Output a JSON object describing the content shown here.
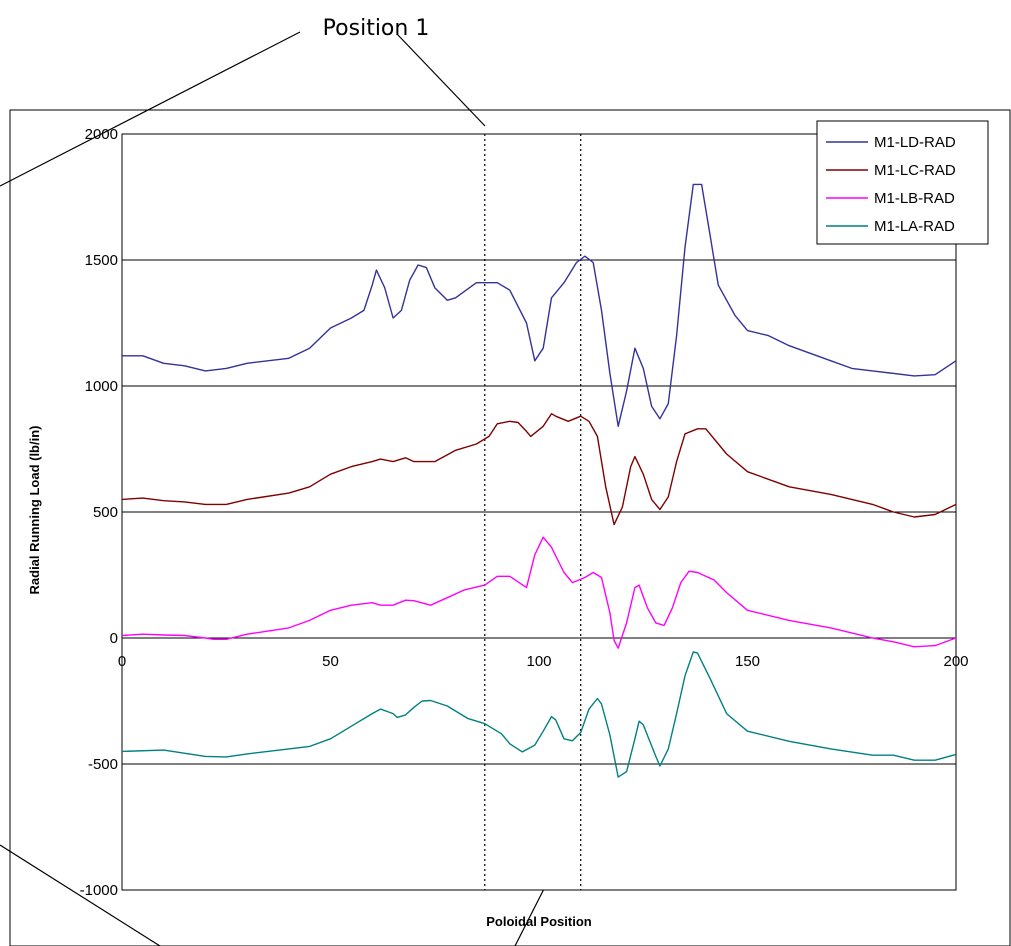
{
  "callout": {
    "label": "Position 1"
  },
  "chart_data": {
    "type": "line",
    "xlabel": "Poloidal Position",
    "ylabel": "Radial Running Load (lb/in)",
    "xlim": [
      0,
      200
    ],
    "ylim": [
      -1000,
      2000
    ],
    "x_ticks": [
      0,
      50,
      100,
      150,
      200
    ],
    "y_ticks": [
      -1000,
      -500,
      0,
      500,
      1000,
      1500,
      2000
    ],
    "x_tick_labels": [
      "0",
      "50",
      "100",
      "150",
      "200"
    ],
    "y_tick_labels": [
      "-1000",
      "-500",
      "0",
      "500",
      "1000",
      "1500",
      "2000"
    ],
    "grid": "horizontal major gridlines",
    "legend_position": "top-right",
    "reference_lines": [
      87,
      110
    ],
    "series": [
      {
        "name": "M1-LA-RAD",
        "color": "#008080",
        "points": [
          [
            0,
            -450
          ],
          [
            10,
            -445
          ],
          [
            20,
            -470
          ],
          [
            25,
            -472
          ],
          [
            30,
            -460
          ],
          [
            40,
            -440
          ],
          [
            45,
            -430
          ],
          [
            50,
            -400
          ],
          [
            55,
            -350
          ],
          [
            60,
            -300
          ],
          [
            62,
            -282
          ],
          [
            65,
            -300
          ],
          [
            66,
            -315
          ],
          [
            68,
            -305
          ],
          [
            70,
            -275
          ],
          [
            72,
            -250
          ],
          [
            74,
            -248
          ],
          [
            78,
            -270
          ],
          [
            83,
            -320
          ],
          [
            87,
            -340
          ],
          [
            91,
            -380
          ],
          [
            93,
            -420
          ],
          [
            96,
            -452
          ],
          [
            99,
            -425
          ],
          [
            101,
            -370
          ],
          [
            103,
            -312
          ],
          [
            104,
            -325
          ],
          [
            106,
            -400
          ],
          [
            108,
            -408
          ],
          [
            110,
            -375
          ],
          [
            112,
            -282
          ],
          [
            114,
            -240
          ],
          [
            115,
            -262
          ],
          [
            117,
            -385
          ],
          [
            119,
            -552
          ],
          [
            121,
            -530
          ],
          [
            123,
            -400
          ],
          [
            124,
            -330
          ],
          [
            125,
            -345
          ],
          [
            128,
            -470
          ],
          [
            129,
            -508
          ],
          [
            131,
            -440
          ],
          [
            133,
            -300
          ],
          [
            135,
            -150
          ],
          [
            137,
            -55
          ],
          [
            138,
            -60
          ],
          [
            141,
            -160
          ],
          [
            145,
            -300
          ],
          [
            150,
            -370
          ],
          [
            160,
            -410
          ],
          [
            170,
            -440
          ],
          [
            180,
            -465
          ],
          [
            185,
            -465
          ],
          [
            190,
            -485
          ],
          [
            195,
            -485
          ],
          [
            200,
            -462
          ]
        ]
      },
      {
        "name": "M1-LB-RAD",
        "color": "#ff00ff",
        "points": [
          [
            0,
            10
          ],
          [
            5,
            15
          ],
          [
            10,
            12
          ],
          [
            15,
            10
          ],
          [
            20,
            0
          ],
          [
            22,
            -5
          ],
          [
            25,
            -5
          ],
          [
            30,
            15
          ],
          [
            40,
            40
          ],
          [
            45,
            70
          ],
          [
            50,
            110
          ],
          [
            55,
            130
          ],
          [
            60,
            140
          ],
          [
            62,
            130
          ],
          [
            65,
            130
          ],
          [
            68,
            150
          ],
          [
            70,
            148
          ],
          [
            74,
            130
          ],
          [
            78,
            160
          ],
          [
            82,
            190
          ],
          [
            87,
            210
          ],
          [
            90,
            245
          ],
          [
            93,
            245
          ],
          [
            97,
            200
          ],
          [
            99,
            330
          ],
          [
            101,
            400
          ],
          [
            103,
            360
          ],
          [
            106,
            260
          ],
          [
            108,
            220
          ],
          [
            111,
            240
          ],
          [
            113,
            260
          ],
          [
            115,
            240
          ],
          [
            117,
            100
          ],
          [
            118,
            -10
          ],
          [
            119,
            -40
          ],
          [
            121,
            60
          ],
          [
            123,
            200
          ],
          [
            124,
            210
          ],
          [
            126,
            120
          ],
          [
            128,
            60
          ],
          [
            130,
            50
          ],
          [
            132,
            120
          ],
          [
            134,
            220
          ],
          [
            136,
            265
          ],
          [
            138,
            260
          ],
          [
            142,
            230
          ],
          [
            145,
            180
          ],
          [
            150,
            110
          ],
          [
            160,
            70
          ],
          [
            170,
            40
          ],
          [
            180,
            0
          ],
          [
            185,
            -15
          ],
          [
            190,
            -35
          ],
          [
            195,
            -30
          ],
          [
            200,
            0
          ]
        ]
      },
      {
        "name": "M1-LC-RAD",
        "color": "#800000",
        "points": [
          [
            0,
            550
          ],
          [
            5,
            555
          ],
          [
            10,
            545
          ],
          [
            15,
            540
          ],
          [
            20,
            530
          ],
          [
            25,
            530
          ],
          [
            30,
            550
          ],
          [
            40,
            575
          ],
          [
            45,
            600
          ],
          [
            50,
            650
          ],
          [
            55,
            680
          ],
          [
            60,
            700
          ],
          [
            62,
            710
          ],
          [
            65,
            700
          ],
          [
            68,
            715
          ],
          [
            70,
            700
          ],
          [
            75,
            700
          ],
          [
            80,
            745
          ],
          [
            85,
            770
          ],
          [
            88,
            800
          ],
          [
            90,
            850
          ],
          [
            93,
            860
          ],
          [
            95,
            855
          ],
          [
            97,
            820
          ],
          [
            98,
            800
          ],
          [
            101,
            840
          ],
          [
            103,
            890
          ],
          [
            104,
            880
          ],
          [
            107,
            860
          ],
          [
            110,
            880
          ],
          [
            112,
            860
          ],
          [
            114,
            800
          ],
          [
            116,
            600
          ],
          [
            118,
            450
          ],
          [
            120,
            520
          ],
          [
            122,
            680
          ],
          [
            123,
            720
          ],
          [
            125,
            650
          ],
          [
            127,
            550
          ],
          [
            129,
            510
          ],
          [
            131,
            560
          ],
          [
            133,
            700
          ],
          [
            135,
            810
          ],
          [
            138,
            830
          ],
          [
            140,
            830
          ],
          [
            145,
            730
          ],
          [
            150,
            660
          ],
          [
            160,
            600
          ],
          [
            170,
            570
          ],
          [
            180,
            530
          ],
          [
            185,
            500
          ],
          [
            190,
            480
          ],
          [
            195,
            490
          ],
          [
            200,
            530
          ]
        ]
      },
      {
        "name": "M1-LD-RAD",
        "color": "#333399",
        "points": [
          [
            0,
            1120
          ],
          [
            5,
            1120
          ],
          [
            10,
            1090
          ],
          [
            15,
            1080
          ],
          [
            20,
            1060
          ],
          [
            25,
            1070
          ],
          [
            30,
            1090
          ],
          [
            40,
            1110
          ],
          [
            45,
            1150
          ],
          [
            50,
            1230
          ],
          [
            55,
            1270
          ],
          [
            58,
            1300
          ],
          [
            60,
            1400
          ],
          [
            61,
            1460
          ],
          [
            63,
            1390
          ],
          [
            65,
            1270
          ],
          [
            67,
            1300
          ],
          [
            69,
            1420
          ],
          [
            71,
            1480
          ],
          [
            73,
            1470
          ],
          [
            75,
            1390
          ],
          [
            78,
            1340
          ],
          [
            80,
            1350
          ],
          [
            85,
            1410
          ],
          [
            90,
            1410
          ],
          [
            93,
            1380
          ],
          [
            97,
            1250
          ],
          [
            99,
            1100
          ],
          [
            101,
            1150
          ],
          [
            103,
            1350
          ],
          [
            106,
            1410
          ],
          [
            109,
            1490
          ],
          [
            111,
            1515
          ],
          [
            113,
            1490
          ],
          [
            115,
            1300
          ],
          [
            117,
            1050
          ],
          [
            119,
            840
          ],
          [
            121,
            980
          ],
          [
            123,
            1150
          ],
          [
            125,
            1070
          ],
          [
            127,
            920
          ],
          [
            129,
            870
          ],
          [
            131,
            930
          ],
          [
            133,
            1200
          ],
          [
            135,
            1550
          ],
          [
            137,
            1800
          ],
          [
            139,
            1800
          ],
          [
            141,
            1600
          ],
          [
            143,
            1400
          ],
          [
            147,
            1280
          ],
          [
            150,
            1220
          ],
          [
            155,
            1200
          ],
          [
            160,
            1160
          ],
          [
            170,
            1100
          ],
          [
            175,
            1070
          ],
          [
            180,
            1060
          ],
          [
            190,
            1040
          ],
          [
            195,
            1045
          ],
          [
            200,
            1100
          ]
        ]
      }
    ]
  }
}
